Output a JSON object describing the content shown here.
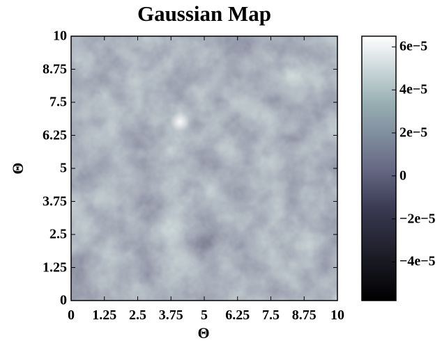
{
  "chart_data": {
    "type": "heatmap",
    "title": "Gaussian Map",
    "xlabel": "Θ",
    "ylabel": "Θ",
    "xlim": [
      0,
      10
    ],
    "ylim": [
      0,
      10
    ],
    "x_ticks": [
      "0",
      "1.25",
      "2.5",
      "3.75",
      "5",
      "6.25",
      "7.5",
      "8.75",
      "10"
    ],
    "y_ticks": [
      "0",
      "1.25",
      "2.5",
      "3.75",
      "5",
      "6.25",
      "7.5",
      "8.75",
      "10"
    ],
    "colorbar": {
      "range": [
        -5.8e-05,
        6.5e-05
      ],
      "ticks": [
        "6e−5",
        "4e−5",
        "2e−5",
        "0",
        "−2e−5",
        "−4e−5"
      ],
      "tick_values": [
        6e-05,
        4e-05,
        2e-05,
        0,
        -2e-05,
        -4e-05
      ],
      "colormap": "bone"
    },
    "colors": {
      "low": "#000000",
      "mid": "#6a6a8c",
      "high": "#ffffff"
    },
    "field_description": "random Gaussian field; brightest peak near (3.9, 6.8)"
  }
}
